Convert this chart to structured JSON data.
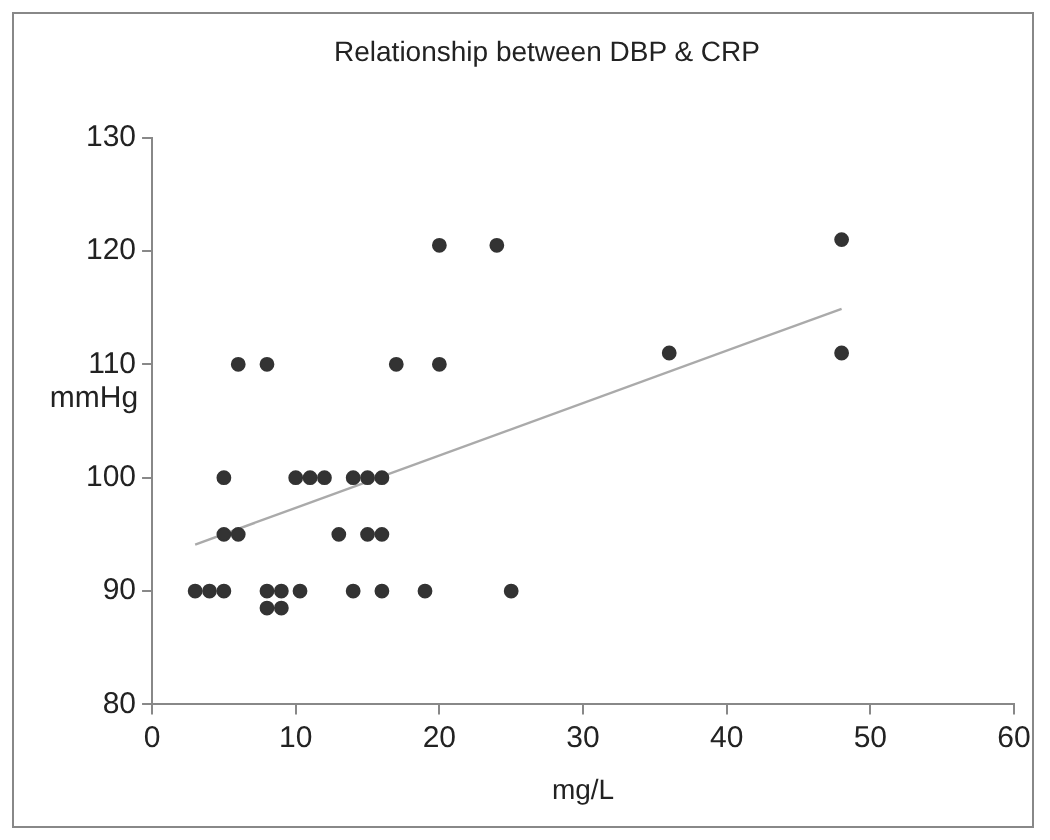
{
  "chart_data": {
    "type": "scatter",
    "title": "Relationship between DBP & CRP",
    "xlabel": "mg/L",
    "ylabel": "mmHg",
    "xlim": [
      0,
      60
    ],
    "xticks": [
      0,
      10,
      20,
      30,
      40,
      50,
      60
    ],
    "ylim": [
      80,
      130
    ],
    "yticks": [
      80,
      90,
      100,
      110,
      120,
      130
    ],
    "grid": false,
    "legend": false,
    "marker": "circle",
    "series": [
      {
        "color": "#333333",
        "x": [
          20,
          24,
          6,
          8,
          17,
          20,
          36,
          48,
          48,
          5,
          10,
          11,
          12,
          14,
          15,
          16,
          5,
          6,
          13,
          15,
          16,
          3,
          4,
          5,
          8,
          9,
          10.3,
          14,
          16,
          19,
          25,
          8,
          9
        ],
        "values": [
          120.5,
          120.5,
          110,
          110,
          110,
          110,
          111,
          121,
          111,
          100,
          100,
          100,
          100,
          100,
          100,
          100,
          95,
          95,
          95,
          95,
          95,
          90,
          90,
          90,
          90,
          90,
          90,
          90,
          90,
          90,
          90,
          88.5,
          88.5
        ]
      },
      {
        "type": "line",
        "color": "#aaaaaa",
        "x": [
          3,
          48
        ],
        "values": [
          94.1,
          114.9
        ],
        "marker": "none"
      }
    ]
  }
}
